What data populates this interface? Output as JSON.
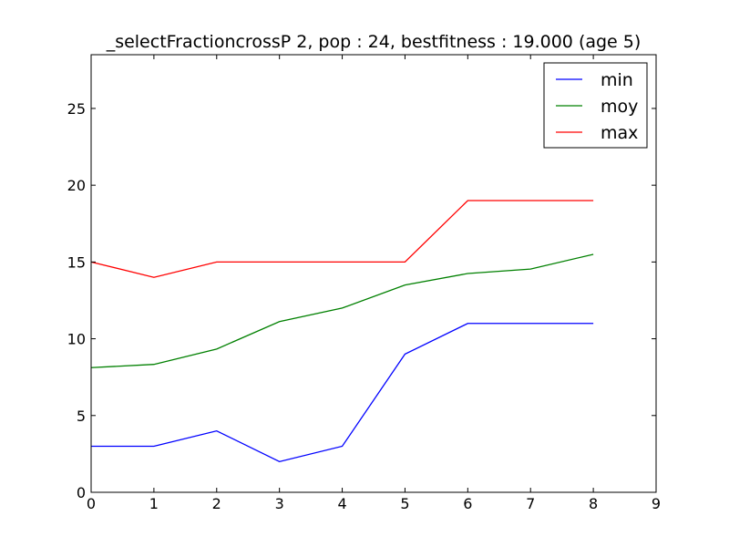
{
  "chart_data": {
    "type": "line",
    "title": "_selectFractioncrossP 2, pop : 24, bestfitness : 19.000 (age 5)",
    "xlabel": "",
    "ylabel": "",
    "xlim": [
      0,
      9
    ],
    "ylim": [
      0,
      28.5
    ],
    "x_ticks": [
      0,
      1,
      2,
      3,
      4,
      5,
      6,
      7,
      8,
      9
    ],
    "y_ticks": [
      0,
      5,
      10,
      15,
      20,
      25
    ],
    "grid": false,
    "legend_position": "top-right",
    "x": [
      0,
      1,
      2,
      3,
      4,
      5,
      6,
      7,
      8
    ],
    "series": [
      {
        "name": "min",
        "color": "#0000ff",
        "values": [
          3,
          3,
          4,
          2,
          3,
          9,
          11,
          11,
          11
        ]
      },
      {
        "name": "moy",
        "color": "#008000",
        "values": [
          8.12,
          8.33,
          9.33,
          11.12,
          12.0,
          13.5,
          14.25,
          14.54,
          15.5
        ]
      },
      {
        "name": "max",
        "color": "#ff0000",
        "values": [
          15,
          14,
          15,
          15,
          15,
          15,
          19,
          19,
          19
        ]
      }
    ]
  }
}
